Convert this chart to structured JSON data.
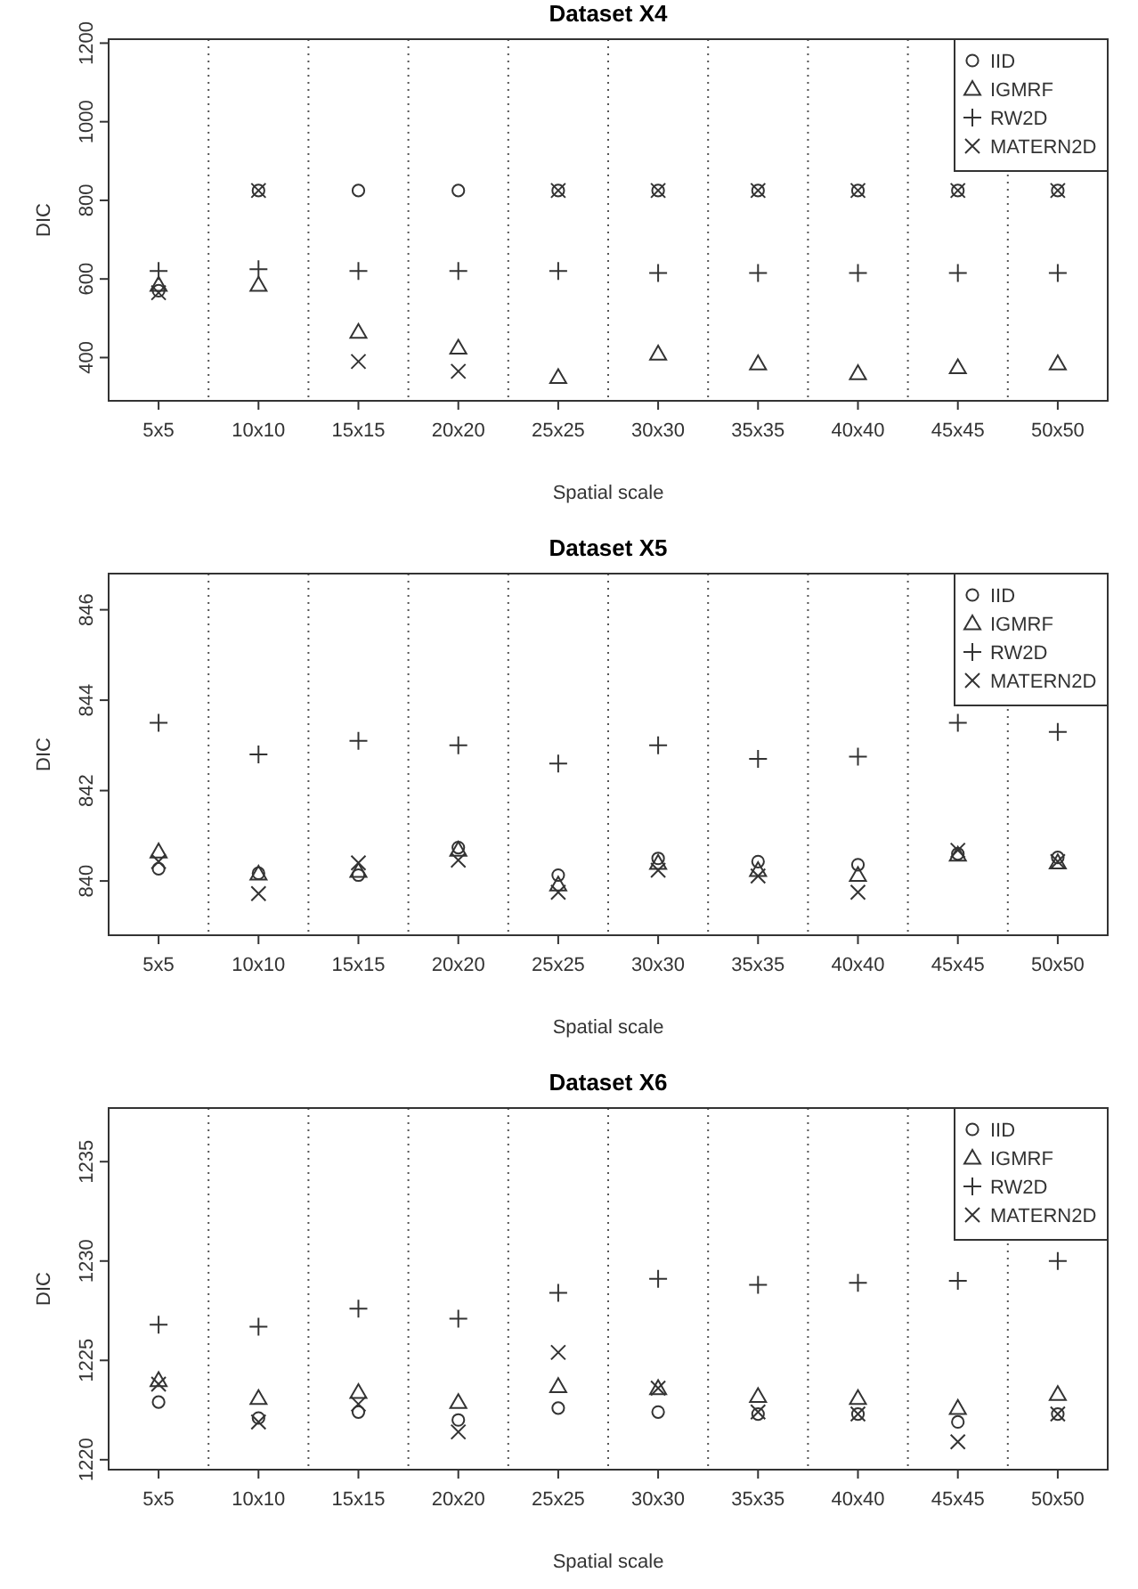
{
  "chart_data": [
    {
      "type": "scatter",
      "title": "Dataset X4",
      "xlabel": "Spatial scale",
      "ylabel": "DIC",
      "categories": [
        "5x5",
        "10x10",
        "15x15",
        "20x20",
        "25x25",
        "30x30",
        "35x35",
        "40x40",
        "45x45",
        "50x50"
      ],
      "ylim": [
        290,
        1210
      ],
      "yticks": [
        400,
        600,
        800,
        1000,
        1200
      ],
      "grid": "x",
      "legend": "top right",
      "series": [
        {
          "name": "IID",
          "color": "#333333",
          "marker": "circle",
          "values": [
            570,
            825,
            825,
            825,
            825,
            825,
            825,
            825,
            825,
            825
          ]
        },
        {
          "name": "IGMRF",
          "color": "#333333",
          "marker": "triangle",
          "values": [
            585,
            585,
            465,
            425,
            350,
            410,
            385,
            360,
            375,
            385
          ]
        },
        {
          "name": "RW2D",
          "color": "#333333",
          "marker": "plus",
          "values": [
            620,
            625,
            620,
            620,
            620,
            615,
            615,
            615,
            615,
            615
          ]
        },
        {
          "name": "MATERN2D",
          "color": "#333333",
          "marker": "cross",
          "values": [
            565,
            825,
            390,
            365,
            825,
            825,
            825,
            825,
            825,
            825
          ]
        }
      ]
    },
    {
      "type": "scatter",
      "title": "Dataset X5",
      "xlabel": "Spatial scale",
      "ylabel": "DIC",
      "categories": [
        "5x5",
        "10x10",
        "15x15",
        "20x20",
        "25x25",
        "30x30",
        "35x35",
        "40x40",
        "45x45",
        "50x50"
      ],
      "ylim": [
        838.8,
        846.8
      ],
      "yticks": [
        840,
        842,
        844,
        846
      ],
      "grid": "x",
      "legend": "top right",
      "series": [
        {
          "name": "IID",
          "color": "#333333",
          "marker": "circle",
          "values": [
            840.27,
            840.17,
            840.13,
            840.74,
            840.13,
            840.5,
            840.43,
            840.36,
            840.6,
            840.52
          ]
        },
        {
          "name": "IGMRF",
          "color": "#333333",
          "marker": "triangle",
          "values": [
            840.65,
            840.16,
            840.22,
            840.69,
            839.92,
            840.4,
            840.24,
            840.13,
            840.58,
            840.41
          ]
        },
        {
          "name": "RW2D",
          "color": "#333333",
          "marker": "plus",
          "values": [
            843.5,
            842.8,
            843.1,
            843.0,
            842.6,
            843.0,
            842.7,
            842.75,
            843.5,
            843.3
          ]
        },
        {
          "name": "MATERN2D",
          "color": "#333333",
          "marker": "cross",
          "values": [
            840.43,
            839.72,
            840.4,
            840.46,
            839.75,
            840.24,
            840.11,
            839.75,
            840.68,
            840.43
          ]
        }
      ]
    },
    {
      "type": "scatter",
      "title": "Dataset X6",
      "xlabel": "Spatial scale",
      "ylabel": "DIC",
      "categories": [
        "5x5",
        "10x10",
        "15x15",
        "20x20",
        "25x25",
        "30x30",
        "35x35",
        "40x40",
        "45x45",
        "50x50"
      ],
      "ylim": [
        1219.5,
        1237.7
      ],
      "yticks": [
        1220,
        1225,
        1230,
        1235
      ],
      "grid": "x",
      "legend": "top right",
      "series": [
        {
          "name": "IID",
          "color": "#333333",
          "marker": "circle",
          "values": [
            1222.9,
            1222.1,
            1222.4,
            1222.0,
            1222.6,
            1222.4,
            1222.3,
            1222.3,
            1221.9,
            1222.3
          ]
        },
        {
          "name": "IGMRF",
          "color": "#333333",
          "marker": "triangle",
          "values": [
            1224.0,
            1223.1,
            1223.4,
            1222.9,
            1223.7,
            1223.6,
            1223.2,
            1223.1,
            1222.6,
            1223.3
          ]
        },
        {
          "name": "RW2D",
          "color": "#333333",
          "marker": "plus",
          "values": [
            1226.8,
            1226.7,
            1227.6,
            1227.1,
            1228.4,
            1229.1,
            1228.8,
            1228.9,
            1229.0,
            1230.0
          ]
        },
        {
          "name": "MATERN2D",
          "color": "#333333",
          "marker": "cross",
          "values": [
            1223.8,
            1221.9,
            1222.8,
            1221.4,
            1225.4,
            1223.6,
            1222.4,
            1222.3,
            1220.9,
            1222.3
          ]
        }
      ]
    }
  ]
}
